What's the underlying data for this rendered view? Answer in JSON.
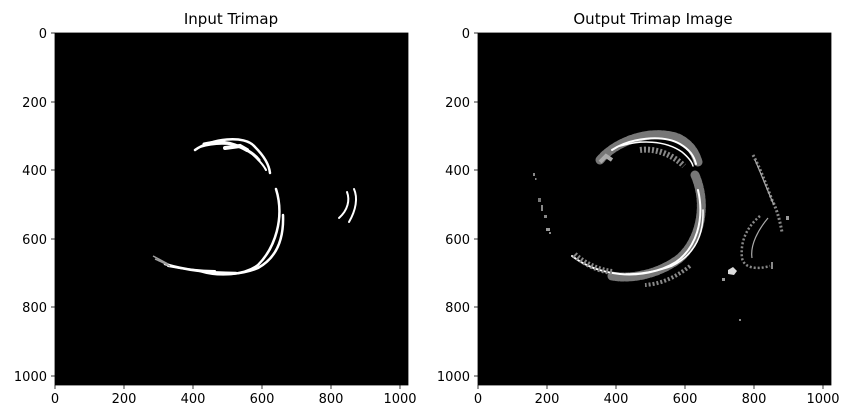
{
  "figure": {
    "panels": [
      {
        "title": "Input Trimap",
        "x_ticks": [
          "0",
          "200",
          "400",
          "600",
          "800",
          "1000"
        ],
        "y_ticks": [
          "0",
          "200",
          "400",
          "600",
          "800",
          "1000"
        ]
      },
      {
        "title": "Output Trimap Image",
        "x_ticks": [
          "0",
          "200",
          "400",
          "600",
          "800",
          "1000"
        ],
        "y_ticks": [
          "0",
          "200",
          "400",
          "600",
          "800",
          "1000"
        ]
      }
    ],
    "image_extent": [
      0,
      1024
    ],
    "colors": {
      "background": "#000000",
      "foreground": "#ffffff",
      "unknown": "#808080"
    }
  }
}
